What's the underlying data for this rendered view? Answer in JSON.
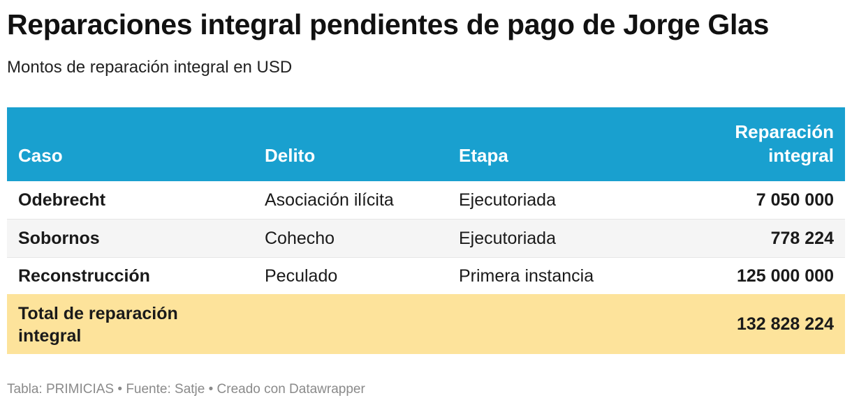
{
  "title": "Reparaciones integral pendientes de pago de Jorge Glas",
  "subtitle": "Montos de reparación integral en USD",
  "chart_data": {
    "type": "table",
    "columns": [
      "Caso",
      "Delito",
      "Etapa",
      "Reparación integral"
    ],
    "rows": [
      {
        "caso": "Odebrecht",
        "delito": "Asociación ilícita",
        "etapa": "Ejecutoriada",
        "reparacion": "7 050 000"
      },
      {
        "caso": "Sobornos",
        "delito": "Cohecho",
        "etapa": "Ejecutoriada",
        "reparacion": "778 224"
      },
      {
        "caso": "Reconstrucción",
        "delito": "Peculado",
        "etapa": "Primera instancia",
        "reparacion": "125 000 000"
      }
    ],
    "total": {
      "label": "Total de reparación integral",
      "value": "132 828 224"
    }
  },
  "footer": "Tabla: PRIMICIAS • Fuente: Satje • Creado con Datawrapper",
  "colors": {
    "header_bg": "#19a0cf",
    "total_bg": "#fde39b",
    "alt_row_bg": "#f5f5f5"
  }
}
